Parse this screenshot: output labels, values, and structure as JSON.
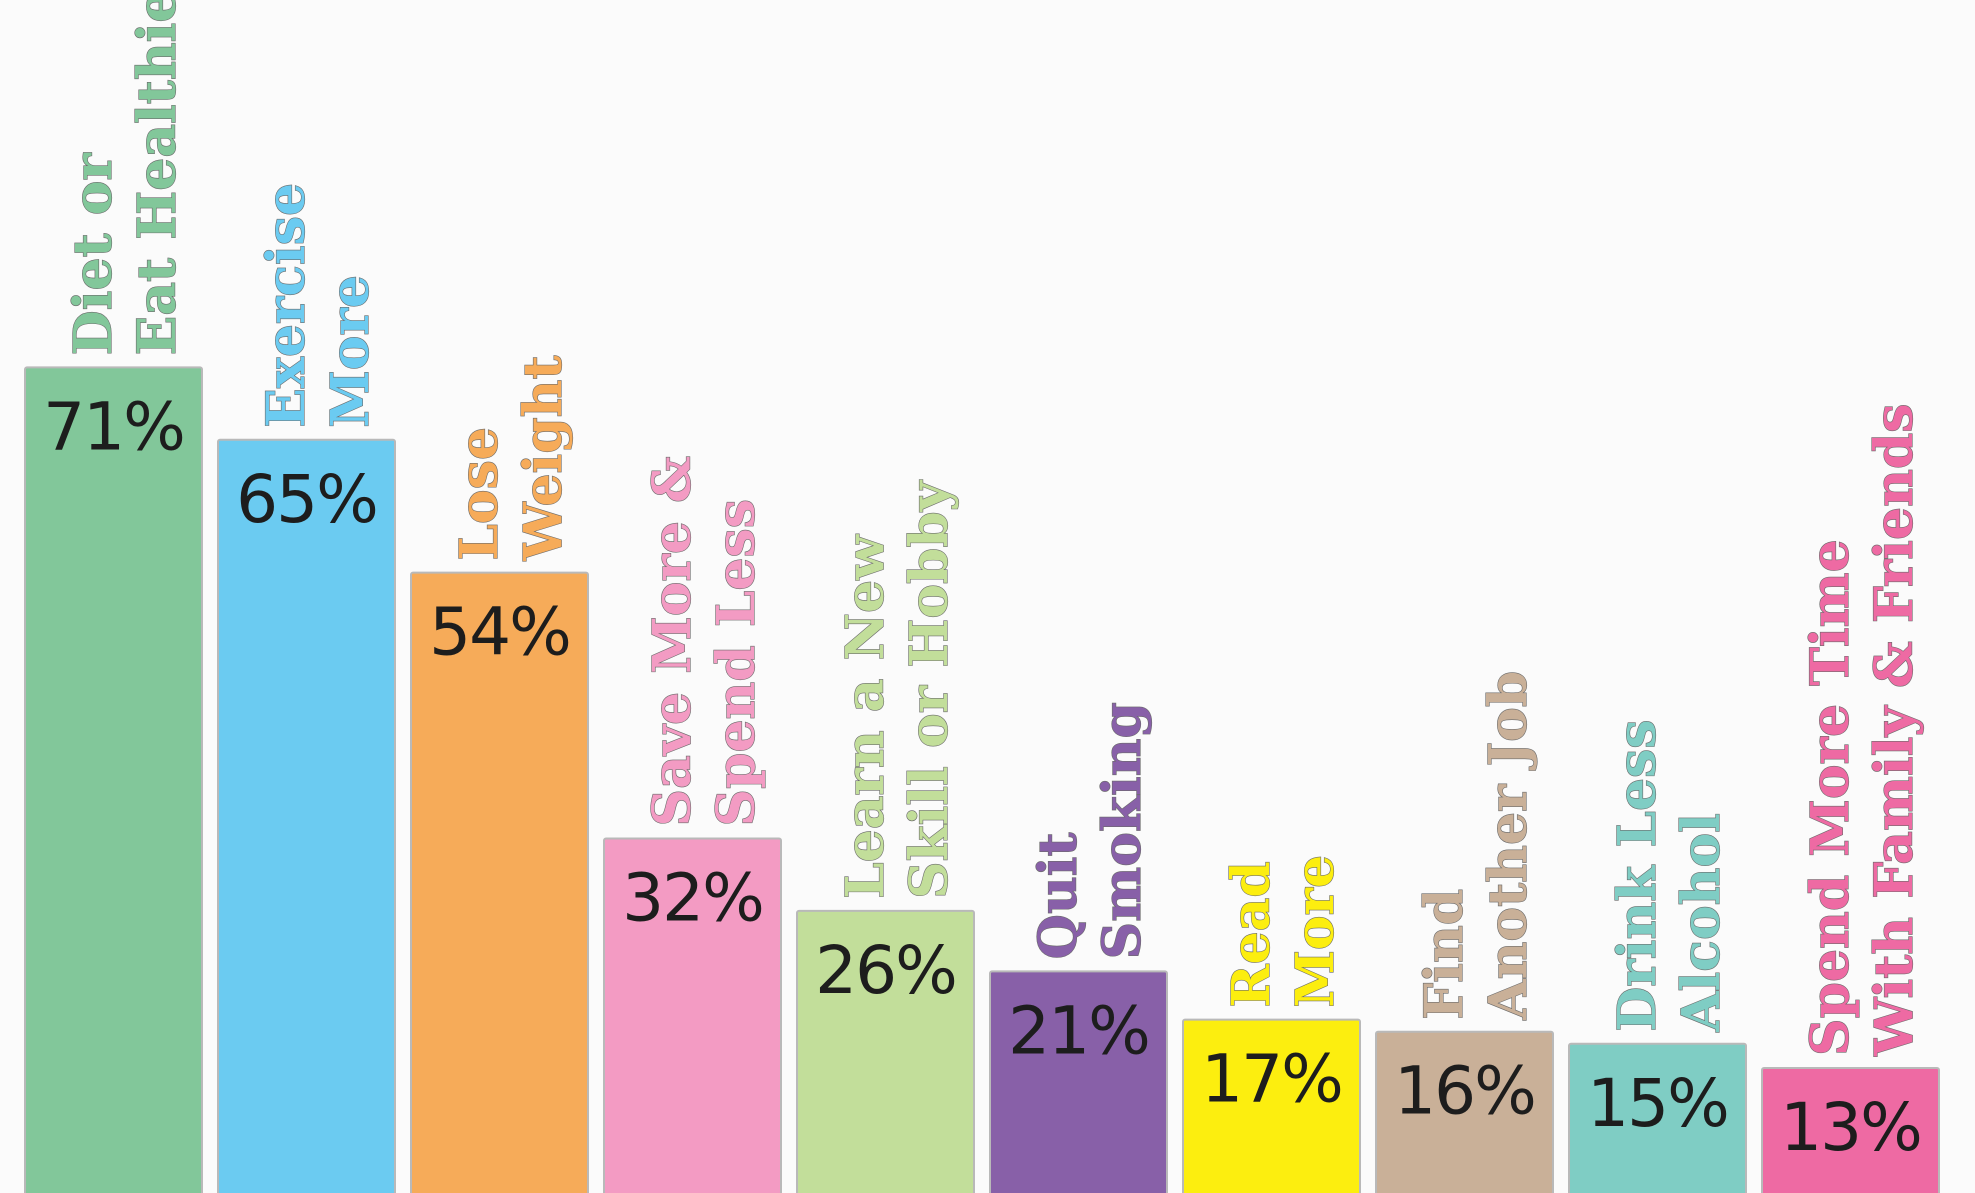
{
  "chart_data": {
    "type": "bar",
    "categories": [
      "Diet or\nEat Healthier",
      "Exercise\nMore",
      "Lose\nWeight",
      "Save More &\nSpend Less",
      "Learn a New\nSkill or Hobby",
      "Quit\nSmoking",
      "Read\nMore",
      "Find\nAnother Job",
      "Drink Less\nAlcohol",
      "Spend More Time\nWith Family & Friends"
    ],
    "values": [
      71,
      65,
      54,
      32,
      26,
      21,
      17,
      16,
      15,
      13
    ],
    "value_labels": [
      "71%",
      "65%",
      "54%",
      "32%",
      "26%",
      "21%",
      "17%",
      "16%",
      "15%",
      "13%"
    ],
    "colors": [
      "#82c79a",
      "#6bcbf1",
      "#f6ab59",
      "#f39bc3",
      "#c2de9a",
      "#8860a8",
      "#fcee0f",
      "#c9b098",
      "#7fcdc4",
      "#ee6aa3"
    ]
  }
}
